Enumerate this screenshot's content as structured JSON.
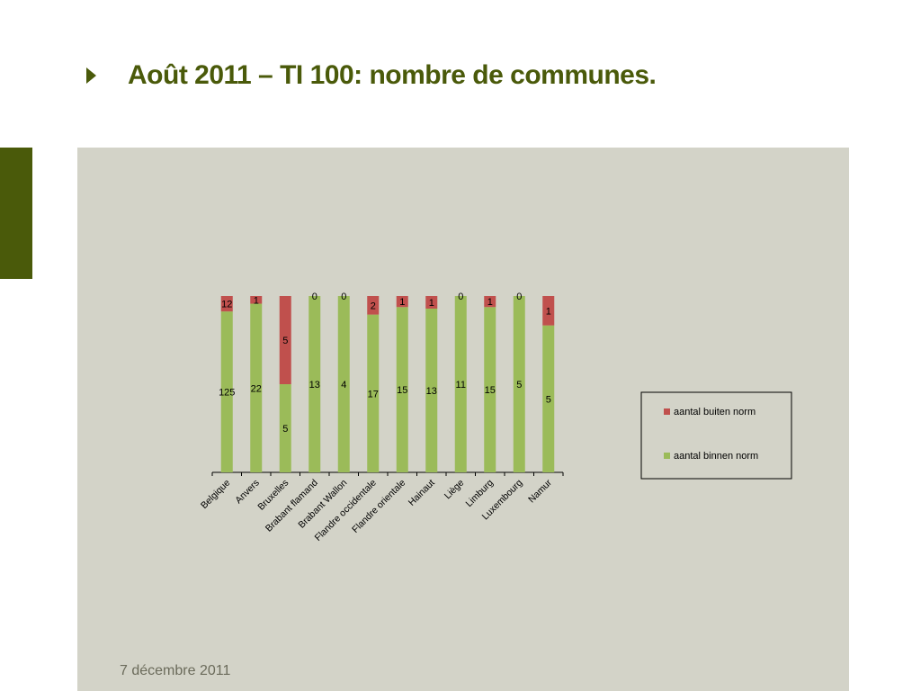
{
  "slide": {
    "title": "Août 2011 – TI 100: nombre de communes.",
    "footer_date": "7 décembre 2011"
  },
  "colors": {
    "title": "#4a5a0a",
    "accent_bar": "#4a5a0a",
    "panel_bg": "#d3d3c8",
    "series_outside": "#c0504d",
    "series_inside": "#9bbb59"
  },
  "icons": {
    "bullet": "triangle-right-icon"
  },
  "chart_data": {
    "type": "bar",
    "stacked": true,
    "percent_stacked": true,
    "title": "",
    "xlabel": "",
    "ylabel": "",
    "categories": [
      "Belgique",
      "Anvers",
      "Bruxelles",
      "Brabant flamand",
      "Brabant Wallon",
      "Flandre occidentale",
      "Flandre orientale",
      "Hainaut",
      "Liège",
      "Limburg",
      "Luxembourg",
      "Namur"
    ],
    "series": [
      {
        "name": "aantal binnen norm",
        "color": "#9bbb59",
        "values": [
          125,
          22,
          5,
          13,
          4,
          17,
          15,
          13,
          11,
          15,
          5,
          5
        ]
      },
      {
        "name": "aantal buiten norm",
        "color": "#c0504d",
        "values": [
          12,
          1,
          5,
          0,
          0,
          2,
          1,
          1,
          0,
          1,
          0,
          1
        ]
      }
    ],
    "legend": {
      "position": "right",
      "entries": [
        "aantal buiten norm",
        "aantal binnen norm"
      ]
    },
    "data_labels": true,
    "grid": false
  }
}
